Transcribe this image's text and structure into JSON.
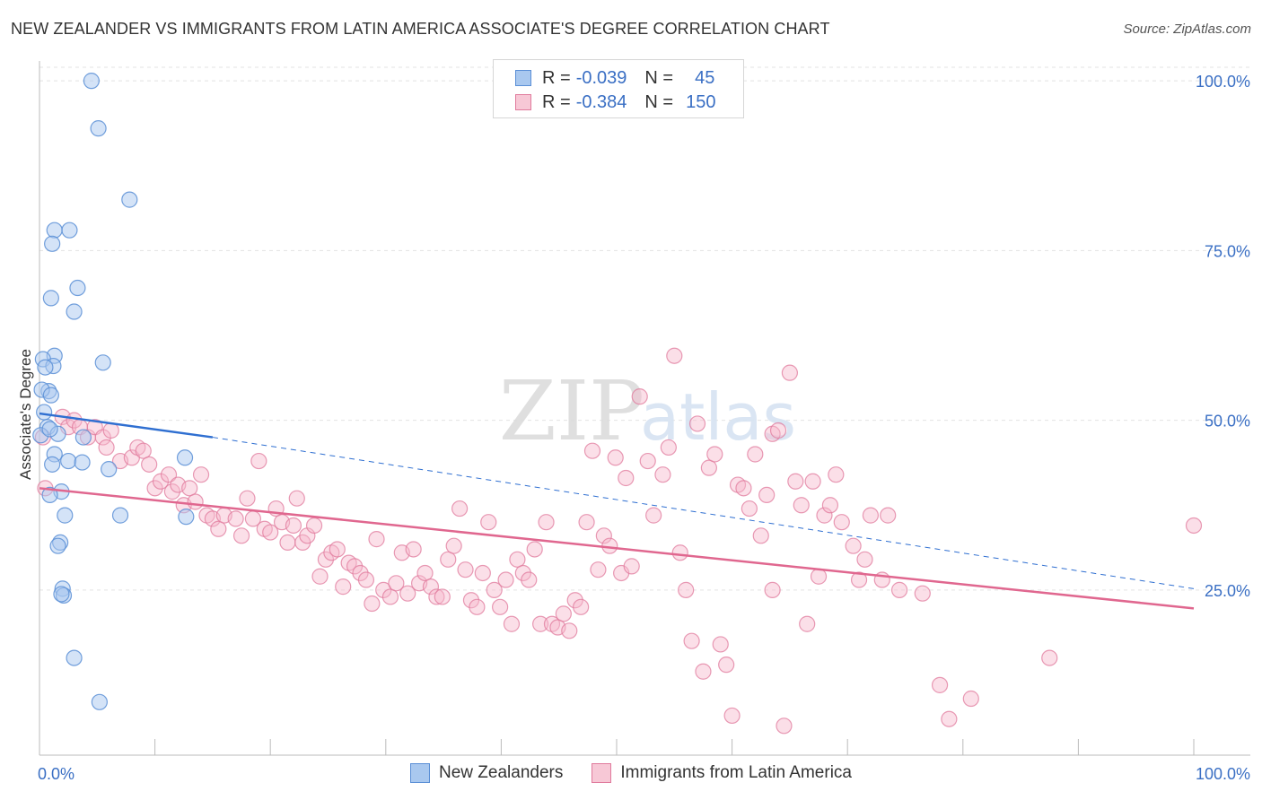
{
  "header": {
    "title": "NEW ZEALANDER VS IMMIGRANTS FROM LATIN AMERICA ASSOCIATE'S DEGREE CORRELATION CHART",
    "source": "Source: ZipAtlas.com"
  },
  "watermark": {
    "zip": "ZIP",
    "atlas": "atlas"
  },
  "legend_top": {
    "rows": [
      {
        "r_label": "R =",
        "r_value": "-0.039",
        "n_label": "N =",
        "n_value": "45"
      },
      {
        "r_label": "R =",
        "r_value": "-0.384",
        "n_label": "N =",
        "n_value": "150"
      }
    ]
  },
  "legend_bottom": {
    "series_a": "New Zealanders",
    "series_b": "Immigrants from Latin America"
  },
  "colors": {
    "blue_fill": "#a9c8ef",
    "blue_stroke": "#5b8fd6",
    "blue_line": "#2f6fd1",
    "pink_fill": "#f7b8cc",
    "pink_stroke": "#e07a9c",
    "pink_line": "#e0678f",
    "axis_text": "#3a6fc4",
    "grid": "#e3e3e3"
  },
  "chart_data": {
    "type": "scatter",
    "title": "NEW ZEALANDER VS IMMIGRANTS FROM LATIN AMERICA ASSOCIATE'S DEGREE CORRELATION CHART",
    "xlabel": "",
    "ylabel": "Associate's Degree",
    "xlim": [
      0,
      100
    ],
    "ylim": [
      2,
      102
    ],
    "x_tick_labels": [
      "0.0%",
      "100.0%"
    ],
    "y_ticks": [
      25,
      50,
      75,
      100
    ],
    "y_tick_labels": [
      "25.0%",
      "50.0%",
      "75.0%",
      "100.0%"
    ],
    "grid": true,
    "legend_position": "top-center",
    "series": [
      {
        "name": "New Zealanders",
        "R": -0.039,
        "N": 45,
        "trend": {
          "x0": 0,
          "y0": 51.0,
          "x1": 15,
          "y1": 47.5,
          "dash_x1": 100,
          "dash_y1": 25.2
        },
        "points": [
          [
            4.5,
            100
          ],
          [
            5.1,
            93
          ],
          [
            7.8,
            82.5
          ],
          [
            1.3,
            78
          ],
          [
            2.6,
            78
          ],
          [
            1.1,
            76
          ],
          [
            1.0,
            68
          ],
          [
            3.3,
            69.5
          ],
          [
            3.0,
            66
          ],
          [
            1.3,
            59.5
          ],
          [
            0.3,
            59
          ],
          [
            1.2,
            58
          ],
          [
            5.5,
            58.5
          ],
          [
            0.5,
            57.8
          ],
          [
            0.8,
            54.3
          ],
          [
            0.2,
            54.5
          ],
          [
            1.0,
            53.7
          ],
          [
            0.4,
            51.2
          ],
          [
            0.7,
            49
          ],
          [
            1.6,
            48
          ],
          [
            0.1,
            47.8
          ],
          [
            0.9,
            48.7
          ],
          [
            3.8,
            47.5
          ],
          [
            1.3,
            45
          ],
          [
            12.6,
            44.5
          ],
          [
            2.5,
            44
          ],
          [
            3.7,
            43.8
          ],
          [
            1.1,
            43.5
          ],
          [
            6.0,
            42.8
          ],
          [
            1.9,
            39.5
          ],
          [
            0.9,
            39
          ],
          [
            2.2,
            36
          ],
          [
            7.0,
            36
          ],
          [
            12.7,
            35.8
          ],
          [
            1.8,
            32
          ],
          [
            1.6,
            31.5
          ],
          [
            2.0,
            25.2
          ],
          [
            2.1,
            24.2
          ],
          [
            1.9,
            24.4
          ],
          [
            3.0,
            15
          ],
          [
            5.2,
            8.5
          ]
        ]
      },
      {
        "name": "Immigrants from Latin America",
        "R": -0.384,
        "N": 150,
        "trend": {
          "x0": 0,
          "y0": 40.0,
          "x1": 100,
          "y1": 22.3
        },
        "points": [
          [
            0.3,
            47.5
          ],
          [
            0.5,
            40
          ],
          [
            2.0,
            50.5
          ],
          [
            2.5,
            49
          ],
          [
            3.0,
            50
          ],
          [
            3.5,
            49
          ],
          [
            4.2,
            47.5
          ],
          [
            4.8,
            49
          ],
          [
            5.5,
            47.5
          ],
          [
            6.2,
            48.5
          ],
          [
            5.8,
            46
          ],
          [
            7.0,
            44
          ],
          [
            8.0,
            44.5
          ],
          [
            8.5,
            46
          ],
          [
            9.0,
            45.5
          ],
          [
            9.5,
            43.5
          ],
          [
            10.0,
            40
          ],
          [
            10.5,
            41
          ],
          [
            11.2,
            42
          ],
          [
            11.5,
            39.5
          ],
          [
            12.0,
            40.5
          ],
          [
            12.5,
            37.5
          ],
          [
            13.0,
            40
          ],
          [
            13.5,
            38
          ],
          [
            14.0,
            42
          ],
          [
            14.5,
            36
          ],
          [
            15.0,
            35.5
          ],
          [
            15.5,
            34
          ],
          [
            16.0,
            36
          ],
          [
            17.0,
            35.5
          ],
          [
            17.5,
            33
          ],
          [
            18.0,
            38.5
          ],
          [
            18.5,
            35.5
          ],
          [
            19.0,
            44
          ],
          [
            19.5,
            34
          ],
          [
            20.0,
            33.5
          ],
          [
            20.5,
            37
          ],
          [
            21.0,
            35
          ],
          [
            21.5,
            32
          ],
          [
            22.0,
            34.5
          ],
          [
            22.3,
            38.5
          ],
          [
            22.8,
            32
          ],
          [
            23.2,
            33
          ],
          [
            23.8,
            34.5
          ],
          [
            24.3,
            27
          ],
          [
            24.8,
            29.5
          ],
          [
            25.3,
            30.5
          ],
          [
            25.8,
            31
          ],
          [
            26.3,
            25.5
          ],
          [
            26.8,
            29
          ],
          [
            27.3,
            28.5
          ],
          [
            27.8,
            27.5
          ],
          [
            28.3,
            26.5
          ],
          [
            28.8,
            23
          ],
          [
            29.2,
            32.5
          ],
          [
            29.8,
            25
          ],
          [
            30.4,
            24
          ],
          [
            30.9,
            26
          ],
          [
            31.4,
            30.5
          ],
          [
            31.9,
            24.5
          ],
          [
            32.4,
            31
          ],
          [
            32.9,
            26
          ],
          [
            33.4,
            27.5
          ],
          [
            33.9,
            25.5
          ],
          [
            34.4,
            24
          ],
          [
            34.9,
            24
          ],
          [
            35.4,
            29.5
          ],
          [
            35.9,
            31.5
          ],
          [
            36.4,
            37
          ],
          [
            36.9,
            28
          ],
          [
            37.4,
            23.5
          ],
          [
            37.9,
            22.5
          ],
          [
            38.4,
            27.5
          ],
          [
            38.9,
            35
          ],
          [
            39.4,
            25
          ],
          [
            39.9,
            22.5
          ],
          [
            40.4,
            26.5
          ],
          [
            40.9,
            20
          ],
          [
            41.4,
            29.5
          ],
          [
            41.9,
            27.5
          ],
          [
            42.4,
            26.5
          ],
          [
            42.9,
            31
          ],
          [
            43.4,
            20
          ],
          [
            43.9,
            35
          ],
          [
            44.4,
            20
          ],
          [
            44.9,
            19.5
          ],
          [
            45.4,
            21.5
          ],
          [
            45.9,
            19
          ],
          [
            46.4,
            23.5
          ],
          [
            46.9,
            22.5
          ],
          [
            47.4,
            35
          ],
          [
            47.9,
            45.5
          ],
          [
            48.4,
            28
          ],
          [
            48.9,
            33
          ],
          [
            49.4,
            31.5
          ],
          [
            49.9,
            44.5
          ],
          [
            50.4,
            27.5
          ],
          [
            50.8,
            41.5
          ],
          [
            51.3,
            28.5
          ],
          [
            52.0,
            53.5
          ],
          [
            52.7,
            44
          ],
          [
            53.2,
            36
          ],
          [
            54.0,
            42
          ],
          [
            54.5,
            46
          ],
          [
            55.0,
            59.5
          ],
          [
            55.5,
            30.5
          ],
          [
            56.0,
            25
          ],
          [
            56.5,
            17.5
          ],
          [
            57.0,
            49.5
          ],
          [
            57.5,
            13
          ],
          [
            58.0,
            43
          ],
          [
            58.5,
            45
          ],
          [
            59.0,
            17
          ],
          [
            59.5,
            14
          ],
          [
            60.0,
            6.5
          ],
          [
            60.5,
            40.5
          ],
          [
            61.0,
            40
          ],
          [
            61.5,
            37
          ],
          [
            62.0,
            45
          ],
          [
            62.5,
            33
          ],
          [
            63.0,
            39
          ],
          [
            63.5,
            25
          ],
          [
            63.5,
            48
          ],
          [
            64.0,
            48.5
          ],
          [
            64.5,
            5
          ],
          [
            65.0,
            57
          ],
          [
            65.5,
            41
          ],
          [
            66.0,
            37.5
          ],
          [
            66.5,
            20
          ],
          [
            67.0,
            41
          ],
          [
            67.5,
            27
          ],
          [
            68.0,
            36
          ],
          [
            68.5,
            37.5
          ],
          [
            69.0,
            42
          ],
          [
            69.5,
            35
          ],
          [
            70.5,
            31.5
          ],
          [
            71.0,
            26.5
          ],
          [
            71.5,
            29.5
          ],
          [
            72.0,
            36
          ],
          [
            73.0,
            26.5
          ],
          [
            73.5,
            36
          ],
          [
            74.5,
            25
          ],
          [
            76.5,
            24.5
          ],
          [
            78.0,
            11
          ],
          [
            78.8,
            6
          ],
          [
            80.7,
            9
          ],
          [
            87.5,
            15
          ],
          [
            100.0,
            34.5
          ]
        ]
      }
    ]
  }
}
